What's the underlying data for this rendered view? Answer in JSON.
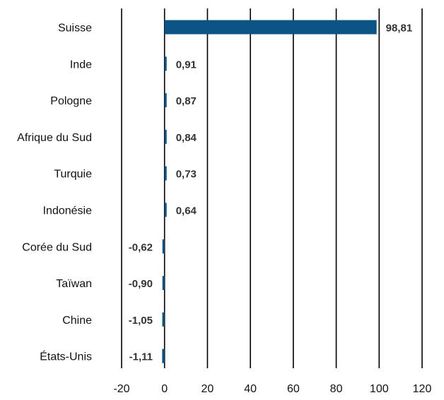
{
  "chart_data": {
    "type": "bar",
    "orientation": "horizontal",
    "categories": [
      "Suisse",
      "Inde",
      "Pologne",
      "Afrique du Sud",
      "Turquie",
      "Indonésie",
      "Corée du Sud",
      "Taïwan",
      "Chine",
      "États-Unis"
    ],
    "value_labels": [
      "98,81",
      "0,91",
      "0,87",
      "0,84",
      "0,73",
      "0,64",
      "-0,62",
      "-0,90",
      "-1,05",
      "-1,11"
    ],
    "values": [
      98.81,
      0.91,
      0.87,
      0.84,
      0.73,
      0.64,
      -0.62,
      -0.9,
      -1.05,
      -1.11
    ],
    "xlim": [
      -20,
      120
    ],
    "xticks": [
      -20,
      0,
      20,
      40,
      60,
      80,
      100,
      120
    ],
    "xtick_labels": [
      "-20",
      "0",
      "20",
      "40",
      "60",
      "80",
      "100",
      "120"
    ],
    "grid": "vertical",
    "bar_color": "#0B5485"
  }
}
